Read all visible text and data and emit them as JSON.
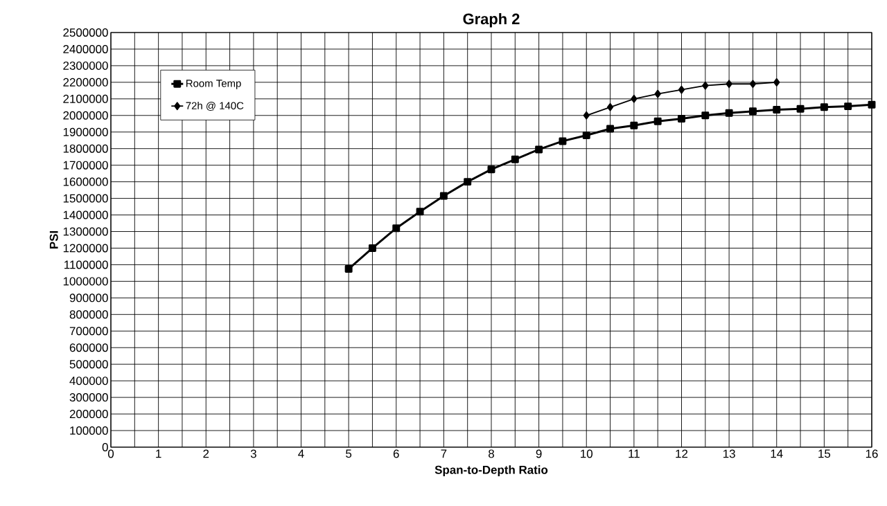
{
  "chart_data": {
    "type": "line",
    "title": "Graph 2",
    "xlabel": "Span-to-Depth Ratio",
    "ylabel": "PSI",
    "xlim": [
      0,
      16
    ],
    "xticks": [
      0,
      1,
      2,
      3,
      4,
      5,
      6,
      7,
      8,
      9,
      10,
      11,
      12,
      13,
      14,
      15,
      16
    ],
    "ylim": [
      0,
      2500000
    ],
    "yticks": [
      0,
      100000,
      200000,
      300000,
      400000,
      500000,
      600000,
      700000,
      800000,
      900000,
      1000000,
      1100000,
      1200000,
      1300000,
      1400000,
      1500000,
      1600000,
      1700000,
      1800000,
      1900000,
      2000000,
      2100000,
      2200000,
      2300000,
      2400000,
      2500000
    ],
    "grid": true,
    "legend": "top left",
    "line_style": "solid",
    "series": [
      {
        "name": "Room Temp",
        "color": "#000000",
        "marker": "square",
        "x": [
          5,
          5.5,
          6,
          6.5,
          7,
          7.5,
          8,
          8.5,
          9,
          9.5,
          10,
          10.5,
          11,
          11.5,
          12,
          12.5,
          13,
          13.5,
          14,
          14.5,
          15,
          15.5,
          16
        ],
        "values": [
          1075000,
          1200000,
          1320000,
          1420000,
          1515000,
          1600000,
          1675000,
          1735000,
          1795000,
          1845000,
          1880000,
          1920000,
          1940000,
          1965000,
          1980000,
          2000000,
          2015000,
          2025000,
          2035000,
          2040000,
          2050000,
          2055000,
          2065000
        ]
      },
      {
        "name": "72h @ 140C",
        "color": "#000000",
        "marker": "diamond",
        "x": [
          10,
          10.5,
          11,
          11.5,
          12,
          12.5,
          13,
          13.5,
          14
        ],
        "values": [
          2000000,
          2050000,
          2100000,
          2130000,
          2155000,
          2180000,
          2190000,
          2190000,
          2200000
        ]
      }
    ]
  }
}
